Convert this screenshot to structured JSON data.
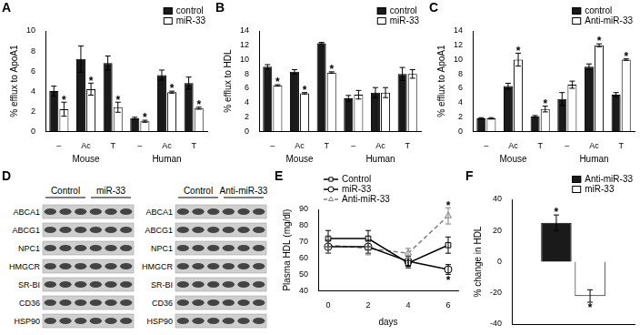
{
  "chart_data": [
    {
      "title": "A",
      "type": "bar",
      "y_label": "% efflux to ApoA1",
      "categories": [
        "–",
        "Ac",
        "T",
        "–",
        "Ac",
        "T"
      ],
      "category_groups": [
        "Mouse",
        "Mouse",
        "Mouse",
        "Human",
        "Human",
        "Human"
      ],
      "series": [
        {
          "name": "control",
          "color": "#1a1a1a",
          "values": [
            4.0,
            7.2,
            6.8,
            1.3,
            5.6,
            4.8
          ],
          "errors": [
            0.5,
            1.3,
            0.7,
            0.1,
            0.5,
            0.6
          ],
          "annotations": [
            null,
            null,
            null,
            null,
            null,
            null
          ]
        },
        {
          "name": "miR-33",
          "color": "#ffffff",
          "values": [
            2.2,
            4.2,
            2.4,
            1.0,
            3.9,
            2.3
          ],
          "errors": [
            0.7,
            0.6,
            0.5,
            0.1,
            0.1,
            0.1
          ],
          "annotations": [
            "*",
            "*",
            "*",
            "*",
            "*",
            "*"
          ]
        }
      ],
      "ylim": [
        0,
        10
      ],
      "yticks": [
        0,
        2,
        4,
        6,
        8,
        10
      ],
      "grid": false,
      "legend": "top-right"
    },
    {
      "title": "B",
      "type": "bar",
      "y_label": "% efflux to HDL",
      "categories": [
        "–",
        "Ac",
        "T",
        "–",
        "Ac",
        "T"
      ],
      "category_groups": [
        "Mouse",
        "Mouse",
        "Mouse",
        "Human",
        "Human",
        "Human"
      ],
      "series": [
        {
          "name": "control",
          "color": "#1a1a1a",
          "values": [
            9.0,
            8.3,
            12.3,
            4.6,
            5.4,
            8.0
          ],
          "errors": [
            0.3,
            0.3,
            0.1,
            0.4,
            0.7,
            0.9
          ],
          "annotations": [
            null,
            null,
            null,
            null,
            null,
            null
          ]
        },
        {
          "name": "miR-33",
          "color": "#ffffff",
          "values": [
            6.4,
            5.3,
            8.2,
            5.1,
            5.4,
            8.0
          ],
          "errors": [
            0.1,
            0.1,
            0.1,
            0.6,
            0.7,
            0.6
          ],
          "annotations": [
            "*",
            "*",
            "*",
            null,
            null,
            null
          ]
        }
      ],
      "ylim": [
        0,
        14
      ],
      "yticks": [
        0,
        2,
        4,
        6,
        8,
        10,
        12,
        14
      ],
      "grid": false,
      "legend": "top-right"
    },
    {
      "title": "C",
      "type": "bar",
      "y_label": "% efflux to ApoA1",
      "categories": [
        "–",
        "Ac",
        "T",
        "–",
        "Ac",
        "T"
      ],
      "category_groups": [
        "Mouse",
        "Mouse",
        "Mouse",
        "Human",
        "Human",
        "Human"
      ],
      "series": [
        {
          "name": "control",
          "color": "#1a1a1a",
          "values": [
            1.8,
            6.3,
            2.1,
            4.5,
            9.0,
            5.1
          ],
          "errors": [
            0.1,
            0.4,
            0.1,
            0.9,
            0.4,
            0.3
          ],
          "annotations": [
            null,
            null,
            null,
            null,
            null,
            null
          ]
        },
        {
          "name": "Anti-miR-33",
          "color": "#ffffff",
          "values": [
            1.8,
            10.0,
            3.1,
            6.5,
            12.0,
            10.0
          ],
          "errors": [
            0.1,
            0.9,
            0.4,
            0.5,
            0.2,
            0.1
          ],
          "annotations": [
            null,
            "*",
            "*",
            null,
            "*",
            "*"
          ]
        }
      ],
      "ylim": [
        0,
        14
      ],
      "yticks": [
        0,
        2,
        4,
        6,
        8,
        10,
        12,
        14
      ],
      "grid": false,
      "legend": "top-right"
    },
    {
      "title": "E",
      "type": "line",
      "x_label": "days",
      "y_label": "Plasma HDL (mg/dl)",
      "x": [
        0,
        2,
        4,
        6
      ],
      "series": [
        {
          "name": "Control",
          "color": "#000000",
          "marker": "square",
          "line_style": "solid",
          "values": [
            72,
            72,
            57,
            68
          ],
          "errors": [
            5,
            5,
            3,
            5
          ],
          "annotations": [
            null,
            null,
            null,
            null
          ]
        },
        {
          "name": "miR-33",
          "color": "#000000",
          "marker": "circle",
          "line_style": "solid",
          "values": [
            67,
            67,
            58,
            53
          ],
          "errors": [
            4,
            4,
            3,
            3
          ],
          "annotations": [
            null,
            null,
            null,
            "*"
          ]
        },
        {
          "name": "Anti-miR-33",
          "color": "#808080",
          "marker": "triangle",
          "line_style": "dashed",
          "values": [
            68,
            66,
            63,
            86
          ],
          "errors": [
            5,
            4,
            3,
            5
          ],
          "annotations": [
            null,
            null,
            null,
            "*"
          ]
        }
      ],
      "xlim": [
        -0.5,
        6.5
      ],
      "xticks": [
        0,
        2,
        4,
        6
      ],
      "ylim": [
        40,
        90
      ],
      "yticks": [
        40,
        50,
        60,
        70,
        80,
        90
      ],
      "grid": false,
      "legend": "top-left"
    },
    {
      "title": "F",
      "type": "bar",
      "y_label": "% change in HDL",
      "categories": [
        null
      ],
      "series": [
        {
          "name": "Anti-miR-33",
          "color": "#1a1a1a",
          "values": [
            25
          ],
          "errors": [
            5
          ],
          "annotations": [
            "*"
          ]
        },
        {
          "name": "miR-33",
          "color": "#ffffff",
          "values": [
            -22
          ],
          "errors": [
            4
          ],
          "annotations": [
            "*"
          ]
        }
      ],
      "ylim": [
        -40,
        40
      ],
      "yticks": [
        -40,
        -20,
        0,
        20,
        40
      ],
      "grid": false,
      "legend": "top-right",
      "tick_labels": "y"
    }
  ],
  "blot": {
    "title": "D",
    "panels": [
      {
        "groups": [
          "Control",
          "miR-33"
        ],
        "rows": [
          "ABCA1",
          "ABCG1",
          "NPC1",
          "HMGCR",
          "SR-BI",
          "CD36",
          "HSP90"
        ]
      },
      {
        "groups": [
          "Control",
          "Anti-miR-33"
        ],
        "rows": [
          "ABCA1",
          "ABCG1",
          "NPC1",
          "HMGCR",
          "SR-BI",
          "CD36",
          "HSP90"
        ]
      }
    ]
  }
}
